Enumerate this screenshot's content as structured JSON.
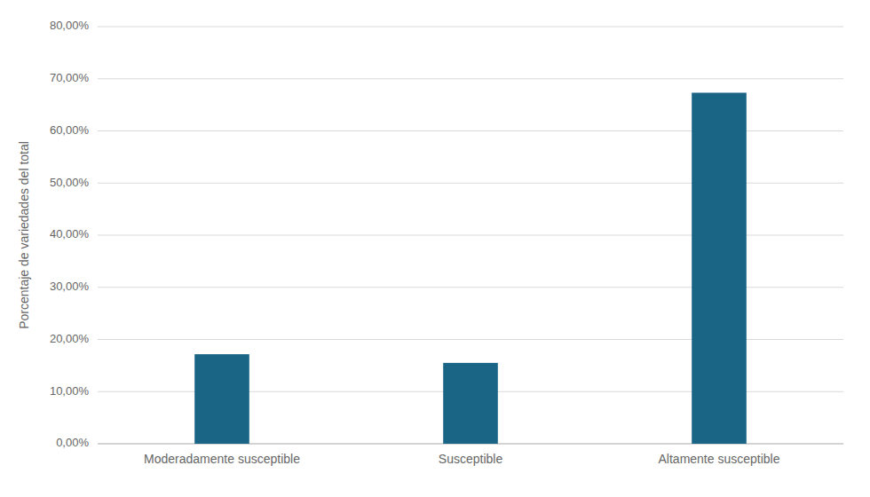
{
  "chart_data": {
    "type": "bar",
    "categories": [
      "Moderadamente susceptible",
      "Susceptible",
      "Altamente susceptible"
    ],
    "values": [
      0.1717,
      0.1551,
      0.6732
    ],
    "color": "#1a6585",
    "ylabel": "Porcentaje de variedades del total",
    "ylim": [
      0,
      0.8
    ],
    "yticks": [
      {
        "value": 0.0,
        "label": "0,00%"
      },
      {
        "value": 0.1,
        "label": "10,00%"
      },
      {
        "value": 0.2,
        "label": "20,00%"
      },
      {
        "value": 0.3,
        "label": "30,00%"
      },
      {
        "value": 0.4,
        "label": "40,00%"
      },
      {
        "value": 0.5,
        "label": "50,00%"
      },
      {
        "value": 0.6,
        "label": "60,00%"
      },
      {
        "value": 0.7,
        "label": "70,00%"
      },
      {
        "value": 0.8,
        "label": "80,00%"
      }
    ],
    "grid": true
  }
}
